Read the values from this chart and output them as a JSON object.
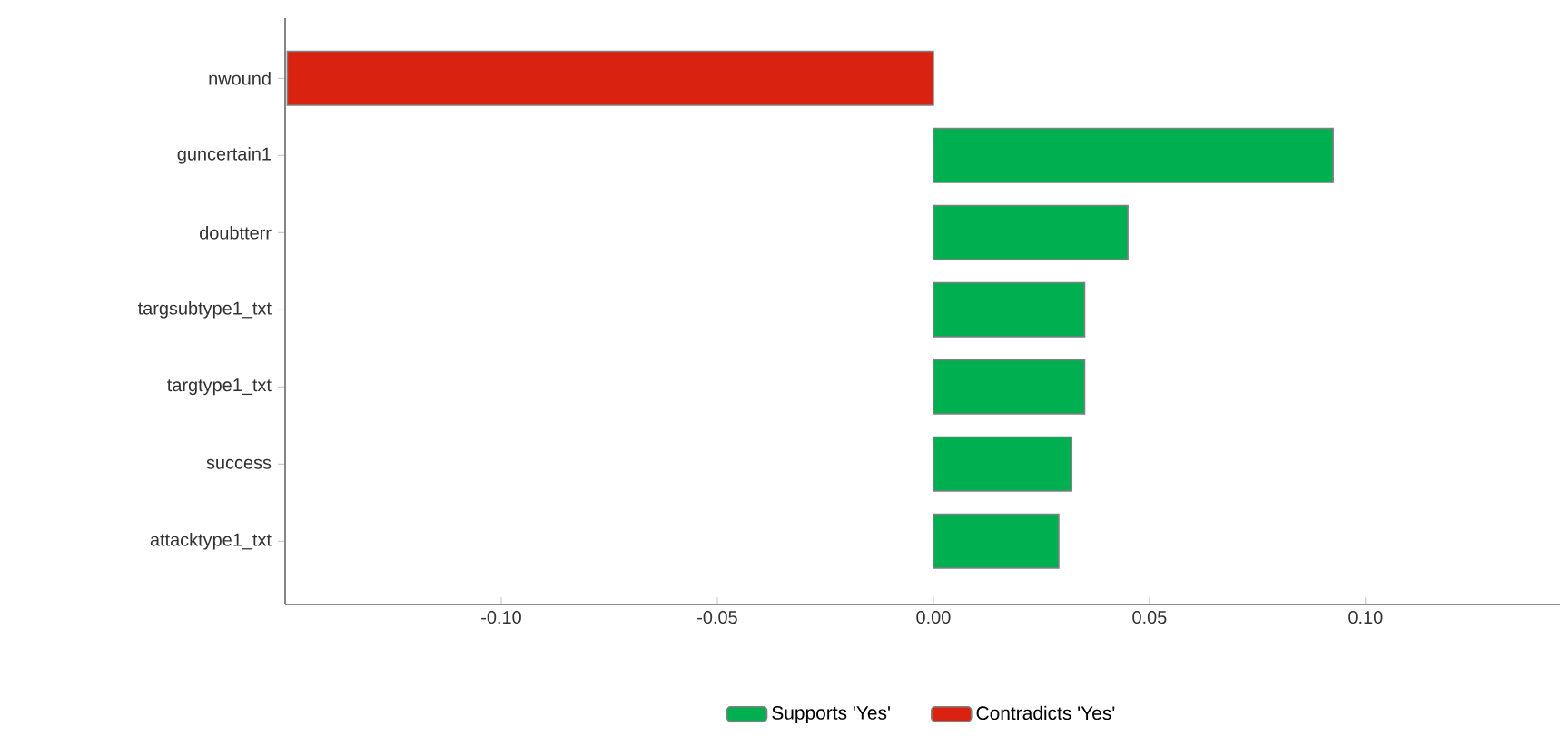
{
  "chart_data": {
    "type": "bar",
    "orientation": "horizontal",
    "categories": [
      "nwound",
      "guncertain1",
      "doubtterr",
      "targsubtype1_txt",
      "targtype1_txt",
      "success",
      "attacktype1_txt"
    ],
    "series": [
      {
        "name": "Supports 'Yes'",
        "color": "#00b050",
        "values": [
          null,
          0.0925,
          0.045,
          0.035,
          0.035,
          0.032,
          0.029
        ]
      },
      {
        "name": "Contradicts 'Yes'",
        "color": "#d92310",
        "values": [
          -0.1495,
          null,
          null,
          null,
          null,
          null,
          null
        ]
      }
    ],
    "xlim": [
      -0.15,
      0.145
    ],
    "xticks": [
      {
        "value": -0.1,
        "label": "-0.10"
      },
      {
        "value": -0.05,
        "label": "-0.05"
      },
      {
        "value": 0,
        "label": "0.00"
      },
      {
        "value": 0.05,
        "label": "0.05"
      },
      {
        "value": 0.1,
        "label": "0.10"
      }
    ],
    "legend": "bottom"
  }
}
